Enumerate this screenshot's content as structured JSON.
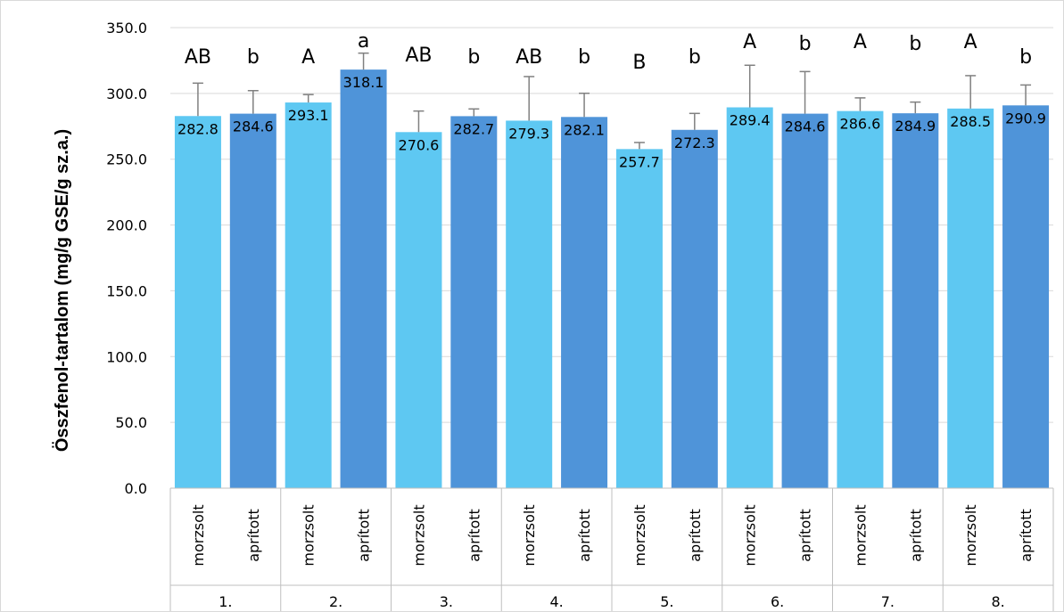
{
  "chart_data": {
    "type": "bar",
    "title": "",
    "ylabel": "Összfenol-tartalom (mg/g GSE/g sz.a.)",
    "xlabel": "",
    "ylim": [
      0,
      350
    ],
    "y_ticks": [
      "0.0",
      "50.0",
      "100.0",
      "150.0",
      "200.0",
      "250.0",
      "300.0",
      "350.0"
    ],
    "grid": true,
    "legend": "none",
    "group_labels": [
      "1.",
      "2.",
      "3.",
      "4.",
      "5.",
      "6.",
      "7.",
      "8."
    ],
    "categories": [
      {
        "group": "1.",
        "label": "morzsolt",
        "value": 282.8,
        "value_label": "282.8",
        "err": 25,
        "letter": "AB",
        "color": "#5ec8f2"
      },
      {
        "group": "1.",
        "label": "aprított",
        "value": 284.6,
        "value_label": "284.6",
        "err": 17.5,
        "letter": "b",
        "color": "#4f94d9"
      },
      {
        "group": "2.",
        "label": "morzsolt",
        "value": 293.1,
        "value_label": "293.1",
        "err": 6,
        "letter": "A",
        "color": "#5ec8f2"
      },
      {
        "group": "2.",
        "label": "aprított",
        "value": 318.1,
        "value_label": "318.1",
        "err": 12.5,
        "letter": "a",
        "color": "#4f94d9"
      },
      {
        "group": "3.",
        "label": "morzsolt",
        "value": 270.6,
        "value_label": "270.6",
        "err": 16,
        "letter": "AB",
        "color": "#5ec8f2"
      },
      {
        "group": "3.",
        "label": "aprított",
        "value": 282.7,
        "value_label": "282.7",
        "err": 5.5,
        "letter": "b",
        "color": "#4f94d9"
      },
      {
        "group": "4.",
        "label": "morzsolt",
        "value": 279.3,
        "value_label": "279.3",
        "err": 33.5,
        "letter": "AB",
        "color": "#5ec8f2"
      },
      {
        "group": "4.",
        "label": "aprított",
        "value": 282.1,
        "value_label": "282.1",
        "err": 18,
        "letter": "b",
        "color": "#4f94d9"
      },
      {
        "group": "5.",
        "label": "morzsolt",
        "value": 257.7,
        "value_label": "257.7",
        "err": 5,
        "letter": "B",
        "color": "#5ec8f2"
      },
      {
        "group": "5.",
        "label": "aprított",
        "value": 272.3,
        "value_label": "272.3",
        "err": 12.5,
        "letter": "b",
        "color": "#4f94d9"
      },
      {
        "group": "6.",
        "label": "morzsolt",
        "value": 289.4,
        "value_label": "289.4",
        "err": 32,
        "letter": "A",
        "color": "#5ec8f2"
      },
      {
        "group": "6.",
        "label": "aprított",
        "value": 284.6,
        "value_label": "284.6",
        "err": 32,
        "letter": "b",
        "color": "#4f94d9"
      },
      {
        "group": "7.",
        "label": "morzsolt",
        "value": 286.6,
        "value_label": "286.6",
        "err": 10,
        "letter": "A",
        "color": "#5ec8f2"
      },
      {
        "group": "7.",
        "label": "aprított",
        "value": 284.9,
        "value_label": "284.9",
        "err": 8.5,
        "letter": "b",
        "color": "#4f94d9"
      },
      {
        "group": "8.",
        "label": "morzsolt",
        "value": 288.5,
        "value_label": "288.5",
        "err": 25,
        "letter": "A",
        "color": "#5ec8f2"
      },
      {
        "group": "8.",
        "label": "aprított",
        "value": 290.9,
        "value_label": "290.9",
        "err": 15.5,
        "letter": "b",
        "color": "#4f94d9"
      }
    ],
    "colors": {
      "morzsolt": "#5ec8f2",
      "aprított": "#4f94d9",
      "gridline": "#d9d9d9",
      "axis": "#bfbfbf",
      "error_bar": "#808080"
    }
  }
}
